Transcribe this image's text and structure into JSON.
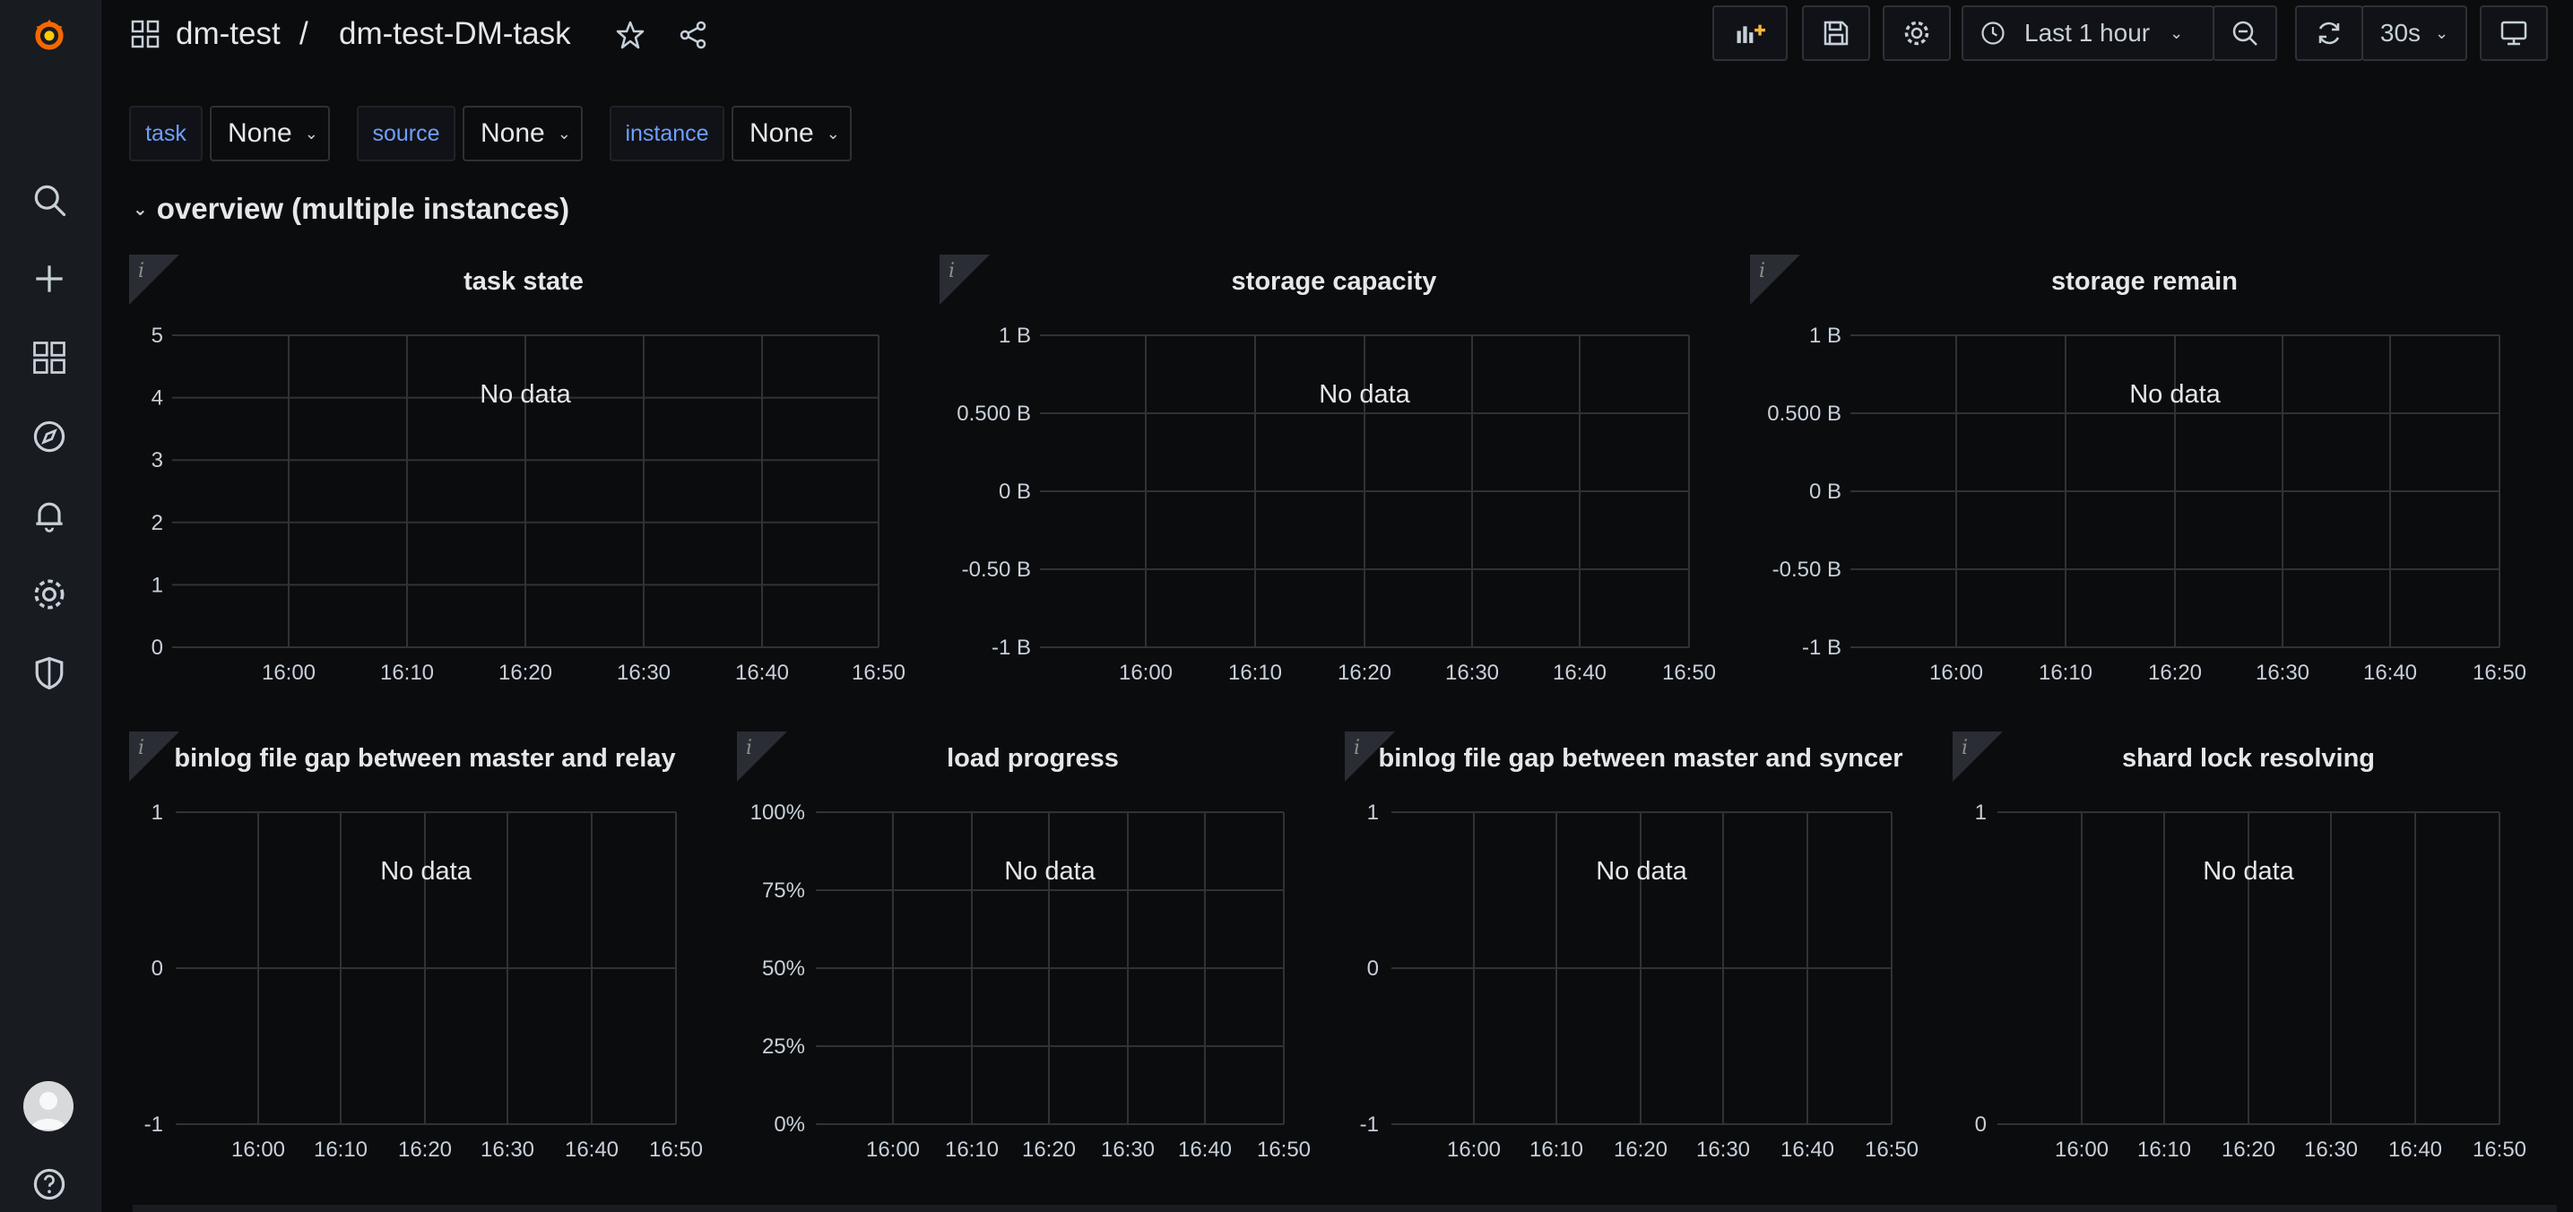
{
  "breadcrumb": {
    "folder": "dm-test",
    "separator": "/",
    "dashboard": "dm-test-DM-task"
  },
  "timepicker": {
    "range_label": "Last 1 hour",
    "refresh_interval": "30s"
  },
  "variables": [
    {
      "label": "task",
      "value": "None"
    },
    {
      "label": "source",
      "value": "None"
    },
    {
      "label": "instance",
      "value": "None"
    }
  ],
  "row": {
    "title": "overview (multiple instances)"
  },
  "panels": [
    {
      "title": "task state",
      "no_data": "No data"
    },
    {
      "title": "storage capacity",
      "no_data": "No data"
    },
    {
      "title": "storage remain",
      "no_data": "No data"
    },
    {
      "title": "binlog file gap between master and relay",
      "no_data": "No data"
    },
    {
      "title": "load progress",
      "no_data": "No data"
    },
    {
      "title": "binlog file gap between master and syncer",
      "no_data": "No data"
    },
    {
      "title": "shard lock resolving",
      "no_data": "No data"
    }
  ],
  "chart_data": [
    {
      "type": "line",
      "title": "task state",
      "y_ticks": [
        "5",
        "4",
        "3",
        "2",
        "1",
        "0"
      ],
      "x_ticks": [
        "16:00",
        "16:10",
        "16:20",
        "16:30",
        "16:40",
        "16:50"
      ],
      "grid": true,
      "series": []
    },
    {
      "type": "line",
      "title": "storage capacity",
      "y_ticks": [
        "1 B",
        "0.500 B",
        "0 B",
        "-0.50 B",
        "-1 B"
      ],
      "x_ticks": [
        "16:00",
        "16:10",
        "16:20",
        "16:30",
        "16:40",
        "16:50"
      ],
      "grid": true,
      "series": []
    },
    {
      "type": "line",
      "title": "storage remain",
      "y_ticks": [
        "1 B",
        "0.500 B",
        "0 B",
        "-0.50 B",
        "-1 B"
      ],
      "x_ticks": [
        "16:00",
        "16:10",
        "16:20",
        "16:30",
        "16:40",
        "16:50"
      ],
      "grid": true,
      "series": []
    },
    {
      "type": "line",
      "title": "binlog file gap between master and relay",
      "y_ticks": [
        "1",
        "0",
        "-1"
      ],
      "x_ticks": [
        "16:00",
        "16:10",
        "16:20",
        "16:30",
        "16:40",
        "16:50"
      ],
      "grid": true,
      "series": []
    },
    {
      "type": "line",
      "title": "load progress",
      "y_ticks": [
        "100%",
        "75%",
        "50%",
        "25%",
        "0%"
      ],
      "x_ticks": [
        "16:00",
        "16:10",
        "16:20",
        "16:30",
        "16:40",
        "16:50"
      ],
      "grid": true,
      "series": []
    },
    {
      "type": "line",
      "title": "binlog file gap between master and syncer",
      "y_ticks": [
        "1",
        "0",
        "-1"
      ],
      "x_ticks": [
        "16:00",
        "16:10",
        "16:20",
        "16:30",
        "16:40",
        "16:50"
      ],
      "grid": true,
      "series": []
    },
    {
      "type": "line",
      "title": "shard lock resolving",
      "y_ticks": [
        "1",
        "0"
      ],
      "x_ticks": [
        "16:00",
        "16:10",
        "16:20",
        "16:30",
        "16:40",
        "16:50"
      ],
      "grid": true,
      "series": []
    }
  ]
}
